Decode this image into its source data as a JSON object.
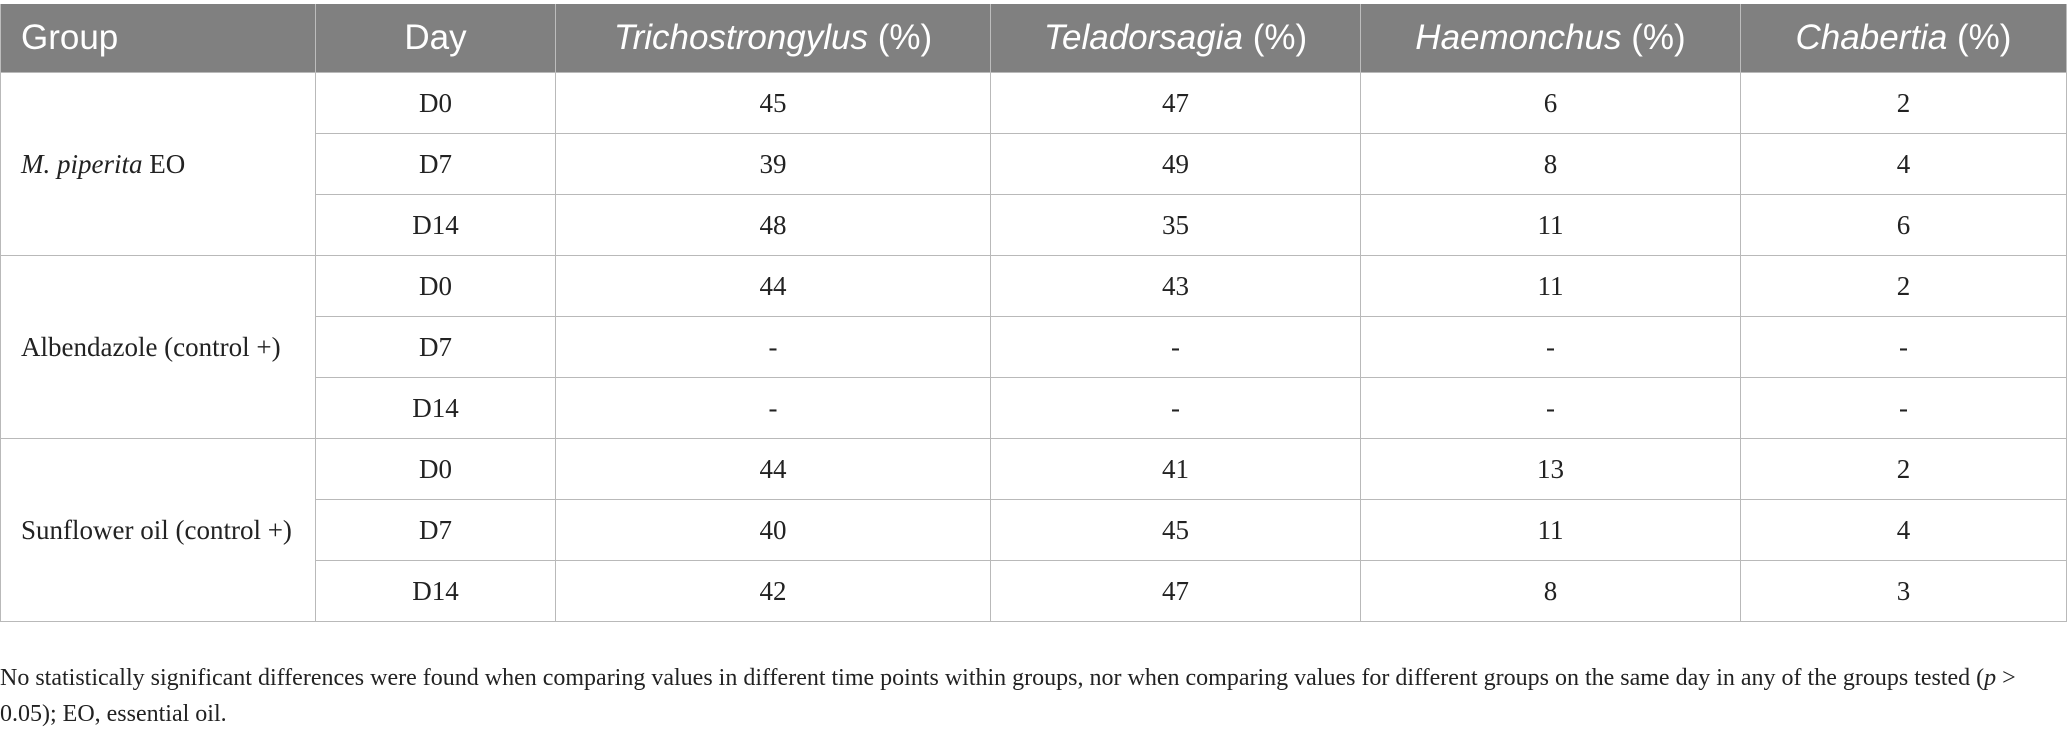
{
  "table": {
    "headers": {
      "group": "Group",
      "day": "Day",
      "cols": [
        {
          "genus": "Trichostrongylus",
          "unit": " (%)"
        },
        {
          "genus": "Teladorsagia",
          "unit": " (%)"
        },
        {
          "genus": "Haemonchus",
          "unit": " (%)"
        },
        {
          "genus": "Chabertia",
          "unit": " (%)"
        }
      ]
    },
    "groups": [
      {
        "name_italic": "M. piperita",
        "name_rest": " EO",
        "rows": [
          {
            "day": "D0",
            "values": [
              "45",
              "47",
              "6",
              "2"
            ]
          },
          {
            "day": "D7",
            "values": [
              "39",
              "49",
              "8",
              "4"
            ]
          },
          {
            "day": "D14",
            "values": [
              "48",
              "35",
              "11",
              "6"
            ]
          }
        ]
      },
      {
        "name_italic": "",
        "name_rest": "Albendazole (control +)",
        "rows": [
          {
            "day": "D0",
            "values": [
              "44",
              "43",
              "11",
              "2"
            ]
          },
          {
            "day": "D7",
            "values": [
              "-",
              "-",
              "-",
              "-"
            ]
          },
          {
            "day": "D14",
            "values": [
              "-",
              "-",
              "-",
              "-"
            ]
          }
        ]
      },
      {
        "name_italic": "",
        "name_rest": "Sunflower oil (control +)",
        "rows": [
          {
            "day": "D0",
            "values": [
              "44",
              "41",
              "13",
              "2"
            ]
          },
          {
            "day": "D7",
            "values": [
              "40",
              "45",
              "11",
              "4"
            ]
          },
          {
            "day": "D14",
            "values": [
              "42",
              "47",
              "8",
              "3"
            ]
          }
        ]
      }
    ]
  },
  "footnote": {
    "before_p": "No statistically significant differences were found when comparing values in different time points within groups, nor when comparing values for different groups on the same day in any of the groups tested (",
    "p": "p",
    "after_p": " > 0.05); EO, essential oil."
  }
}
